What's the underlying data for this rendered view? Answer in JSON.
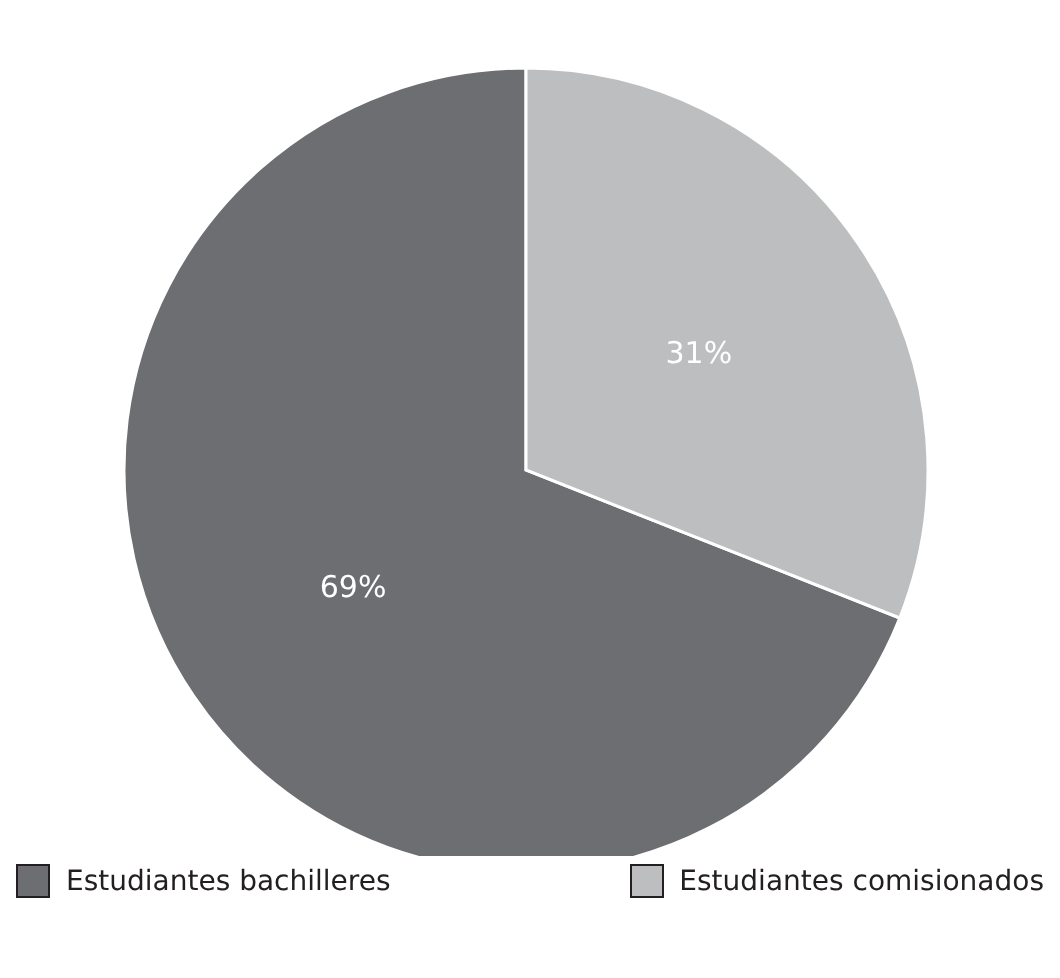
{
  "chart_data": {
    "type": "pie",
    "categories": [
      "Estudiantes bachilleres",
      "Estudiantes comisionados"
    ],
    "values": [
      69,
      31
    ],
    "colors": [
      "#6d6e71",
      "#bcbec0"
    ],
    "value_labels": [
      "69%",
      "31%"
    ],
    "legend": "bottom"
  }
}
